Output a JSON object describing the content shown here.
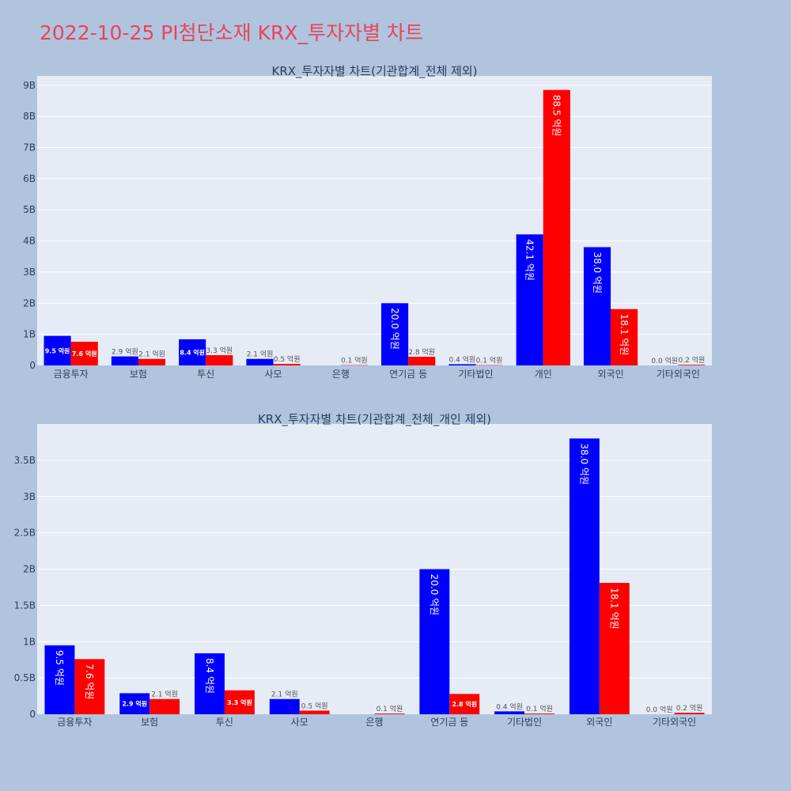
{
  "page_title": "2022-10-25 PI첨단소재 KRX_투자자별 차트",
  "colors": {
    "buy": "#0000ff",
    "sell": "#ff0000",
    "title": "#e8455a",
    "background": "#b0c4de",
    "plot_background": "#e5ecf6"
  },
  "chart_data": [
    {
      "type": "bar",
      "title": "KRX_투자자별 차트(기관합계_전체 제외)",
      "xlabel": "",
      "ylabel": "",
      "categories": [
        "금융투자",
        "보험",
        "투신",
        "사모",
        "은행",
        "연기금 등",
        "기타법인",
        "개인",
        "외국인",
        "기타외국인"
      ],
      "ylim": [
        0,
        9300000000
      ],
      "yticks": [
        0,
        1000000000,
        2000000000,
        3000000000,
        4000000000,
        5000000000,
        6000000000,
        7000000000,
        8000000000,
        9000000000
      ],
      "ytick_labels": [
        "0",
        "1B",
        "2B",
        "3B",
        "4B",
        "5B",
        "6B",
        "7B",
        "8B",
        "9B"
      ],
      "grid": true,
      "series": [
        {
          "color": "#0000ff",
          "values": [
            950000000,
            290000000,
            840000000,
            210000000,
            0,
            2000000000,
            40000000,
            4210000000,
            3800000000,
            0
          ],
          "labels": [
            "9.5 억원",
            "2.9 억원",
            "8.4 억원",
            "2.1 억원",
            "",
            "20.0 억원",
            "0.4 억원",
            "42.1 억원",
            "38.0 억원",
            "0.0 억원"
          ]
        },
        {
          "color": "#ff0000",
          "values": [
            760000000,
            210000000,
            330000000,
            50000000,
            10000000,
            280000000,
            10000000,
            8850000000,
            1810000000,
            20000000
          ],
          "labels": [
            "7.6 억원",
            "2.1 억원",
            "3.3 억원",
            "0.5 억원",
            "0.1 억원",
            "2.8 억원",
            "0.1 억원",
            "88.5 억원",
            "18.1 억원",
            "0.2 억원"
          ]
        }
      ]
    },
    {
      "type": "bar",
      "title": "KRX_투자자별 차트(기관합계_전체_개인 제외)",
      "xlabel": "",
      "ylabel": "",
      "categories": [
        "금융투자",
        "보험",
        "투신",
        "사모",
        "은행",
        "연기금 등",
        "기타법인",
        "외국인",
        "기타외국인"
      ],
      "ylim": [
        0,
        4000000000
      ],
      "yticks": [
        0,
        500000000,
        1000000000,
        1500000000,
        2000000000,
        2500000000,
        3000000000,
        3500000000
      ],
      "ytick_labels": [
        "0",
        "0.5B",
        "1B",
        "1.5B",
        "2B",
        "2.5B",
        "3B",
        "3.5B"
      ],
      "grid": true,
      "series": [
        {
          "color": "#0000ff",
          "values": [
            950000000,
            290000000,
            840000000,
            210000000,
            0,
            2000000000,
            40000000,
            3800000000,
            0
          ],
          "labels": [
            "9.5 억원",
            "2.9 억원",
            "8.4 억원",
            "2.1 억원",
            "",
            "20.0 억원",
            "0.4 억원",
            "38.0 억원",
            "0.0 억원"
          ]
        },
        {
          "color": "#ff0000",
          "values": [
            760000000,
            210000000,
            330000000,
            50000000,
            10000000,
            280000000,
            10000000,
            1810000000,
            20000000
          ],
          "labels": [
            "7.6 억원",
            "2.1 억원",
            "3.3 억원",
            "0.5 억원",
            "0.1 억원",
            "2.8 억원",
            "0.1 억원",
            "18.1 억원",
            "0.2 억원"
          ]
        }
      ]
    }
  ]
}
